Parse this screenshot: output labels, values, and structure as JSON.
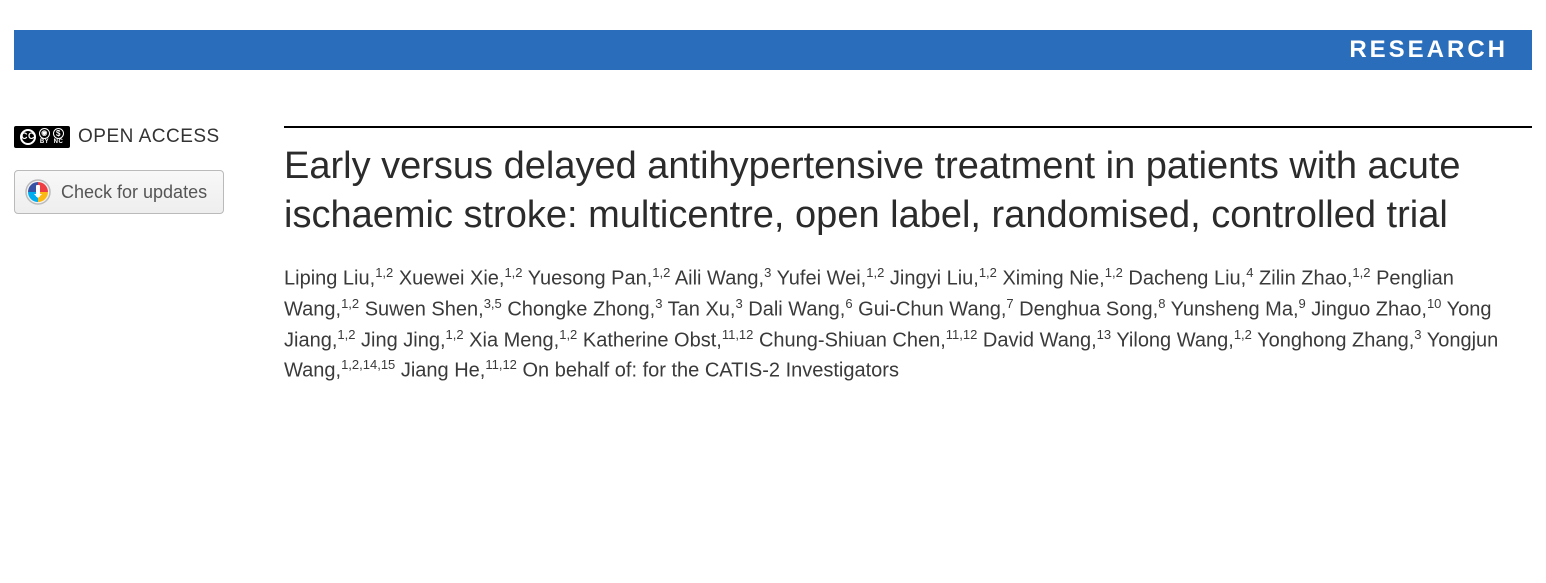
{
  "banner": {
    "label": "RESEARCH",
    "bg_color": "#2a6ebb",
    "text_color": "#ffffff"
  },
  "sidebar": {
    "open_access_label": "OPEN ACCESS",
    "cc_text": "CC",
    "by_label": "BY",
    "nc_label": "NC",
    "check_updates_label": "Check for updates"
  },
  "article": {
    "title": "Early versus delayed antihypertensive treatment in patients with acute ischaemic stroke: multicentre, open label, randomised, controlled trial",
    "authors": [
      {
        "name": "Liping Liu",
        "affil": "1,2"
      },
      {
        "name": "Xuewei Xie",
        "affil": "1,2"
      },
      {
        "name": "Yuesong Pan",
        "affil": "1,2"
      },
      {
        "name": "Aili Wang",
        "affil": "3"
      },
      {
        "name": "Yufei Wei",
        "affil": "1,2"
      },
      {
        "name": "Jingyi Liu",
        "affil": "1,2"
      },
      {
        "name": "Ximing Nie",
        "affil": "1,2"
      },
      {
        "name": "Dacheng Liu",
        "affil": "4"
      },
      {
        "name": "Zilin Zhao",
        "affil": "1,2"
      },
      {
        "name": "Penglian Wang",
        "affil": "1,2"
      },
      {
        "name": "Suwen Shen",
        "affil": "3,5"
      },
      {
        "name": "Chongke Zhong",
        "affil": "3"
      },
      {
        "name": "Tan Xu",
        "affil": "3"
      },
      {
        "name": "Dali Wang",
        "affil": "6"
      },
      {
        "name": "Gui-Chun Wang",
        "affil": "7"
      },
      {
        "name": "Denghua Song",
        "affil": "8"
      },
      {
        "name": "Yunsheng Ma",
        "affil": "9"
      },
      {
        "name": "Jinguo Zhao",
        "affil": "10"
      },
      {
        "name": "Yong Jiang",
        "affil": "1,2"
      },
      {
        "name": "Jing Jing",
        "affil": "1,2"
      },
      {
        "name": "Xia Meng",
        "affil": "1,2"
      },
      {
        "name": "Katherine Obst",
        "affil": "11,12"
      },
      {
        "name": "Chung-Shiuan Chen",
        "affil": "11,12"
      },
      {
        "name": "David Wang",
        "affil": "13"
      },
      {
        "name": "Yilong Wang",
        "affil": "1,2"
      },
      {
        "name": "Yonghong Zhang",
        "affil": "3"
      },
      {
        "name": "Yongjun Wang",
        "affil": "1,2,14,15"
      },
      {
        "name": "Jiang He",
        "affil": "11,12"
      }
    ],
    "on_behalf": "On behalf of: for the CATIS-2 Investigators"
  },
  "colors": {
    "title_text": "#2b2b2b",
    "author_text": "#3a3a3a",
    "rule": "#000000",
    "button_border": "#bababa",
    "button_text": "#555555"
  }
}
